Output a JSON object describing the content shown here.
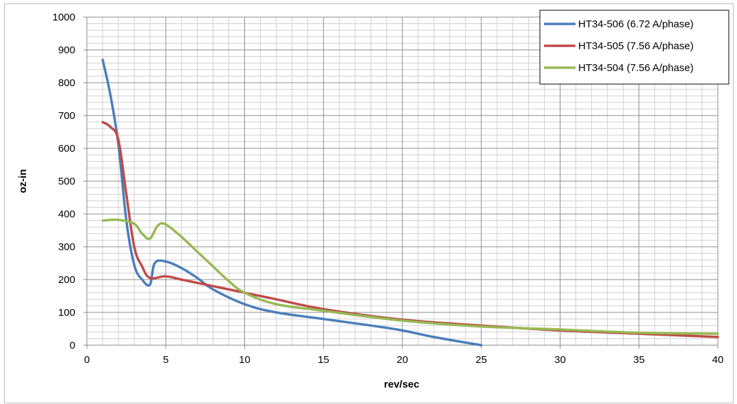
{
  "chart_data": {
    "type": "line",
    "title": "",
    "xlabel": "rev/sec",
    "ylabel": "oz-in",
    "xlim": [
      0,
      40
    ],
    "ylim": [
      0,
      1000
    ],
    "x_major_ticks": [
      0,
      5,
      10,
      15,
      20,
      25,
      30,
      35,
      40
    ],
    "x_tick_labels": [
      "0",
      "5",
      "10",
      "15",
      "20",
      "25",
      "30",
      "35",
      "40"
    ],
    "y_major_ticks": [
      0,
      100,
      200,
      300,
      400,
      500,
      600,
      700,
      800,
      900,
      1000
    ],
    "y_tick_labels": [
      "0",
      "100",
      "200",
      "300",
      "400",
      "500",
      "600",
      "700",
      "800",
      "900",
      "1000"
    ],
    "x_minor_step": 1,
    "y_minor_step": 20,
    "grid": true,
    "legend_position": "top-right",
    "series": [
      {
        "name": "HT34-506 (6.72 A/phase)",
        "color": "#4a7ebb",
        "x": [
          1,
          1.5,
          2,
          2.5,
          3,
          3.5,
          4,
          4.3,
          5,
          6,
          7,
          8,
          10,
          12,
          15,
          18,
          20,
          22,
          25
        ],
        "y": [
          870,
          760,
          610,
          380,
          245,
          200,
          185,
          250,
          255,
          235,
          205,
          170,
          125,
          100,
          80,
          60,
          45,
          25,
          0
        ]
      },
      {
        "name": "HT34-505 (7.56 A/phase)",
        "color": "#be4b48",
        "x": [
          1,
          1.5,
          2,
          2.5,
          3,
          3.5,
          4,
          5,
          6,
          8,
          10,
          12,
          15,
          20,
          25,
          30,
          35,
          40
        ],
        "y": [
          680,
          665,
          625,
          460,
          300,
          240,
          205,
          210,
          200,
          180,
          160,
          140,
          110,
          78,
          60,
          45,
          35,
          25
        ]
      },
      {
        "name": "HT34-504 (7.56 A/phase)",
        "color": "#98b954",
        "x": [
          1,
          2,
          3,
          3.5,
          4,
          4.5,
          5,
          6,
          7,
          8,
          9,
          10,
          12,
          15,
          20,
          25,
          30,
          35,
          40
        ],
        "y": [
          380,
          382,
          370,
          340,
          325,
          365,
          368,
          330,
          285,
          240,
          195,
          160,
          125,
          105,
          75,
          57,
          48,
          38,
          35
        ]
      }
    ]
  }
}
